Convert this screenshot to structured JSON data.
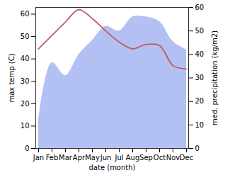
{
  "chart_data": {
    "type": "line",
    "xlabel": "date (month)",
    "ylabel": "max temp (C)",
    "y2label": "med. precipitation (kg/m2)",
    "categories": [
      "Jan",
      "Feb",
      "Mar",
      "Apr",
      "May",
      "Jun",
      "Jul",
      "Aug",
      "Sep",
      "Oct",
      "Nov",
      "Dec"
    ],
    "series": [
      {
        "type": "area",
        "axis": "y2",
        "color": "#b3c0f3",
        "values": [
          12,
          36.5,
          31,
          40,
          46,
          52,
          50,
          56,
          56,
          54,
          45.5,
          42
        ]
      },
      {
        "type": "line",
        "color": "#c45a5a",
        "values": [
          44.5,
          50.5,
          56.5,
          62,
          58,
          52.5,
          47.5,
          44.5,
          46.5,
          46,
          37,
          35.5
        ]
      }
    ],
    "ylim": [
      0,
      63
    ],
    "yticks": [
      0,
      10,
      20,
      30,
      40,
      50,
      60
    ],
    "y2lim": [
      0,
      60
    ],
    "y2ticks": [
      0,
      10,
      20,
      30,
      40,
      50,
      60
    ],
    "grid": false
  }
}
